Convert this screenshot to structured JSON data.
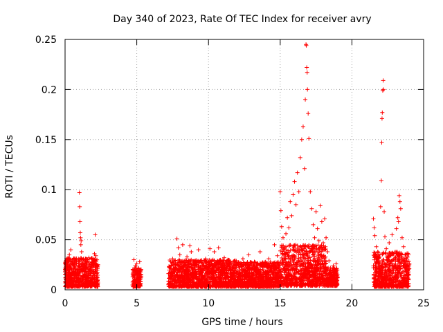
{
  "chart_data": {
    "type": "scatter",
    "title": "Day 340 of 2023, Rate Of TEC Index for receiver avry",
    "xlabel": "GPS time / hours",
    "ylabel": "ROTI / TECUs",
    "xlim": [
      0,
      25
    ],
    "ylim": [
      0,
      0.25
    ],
    "xticks": [
      0,
      5,
      10,
      15,
      20,
      25
    ],
    "xtick_labels": [
      "0",
      "5",
      "10",
      "15",
      "20",
      "25"
    ],
    "yticks": [
      0,
      0.05,
      0.1,
      0.15,
      0.2,
      0.25
    ],
    "ytick_labels": [
      "0",
      "0.05",
      "0.1",
      "0.15",
      "0.2",
      "0.25"
    ],
    "grid": true,
    "marker": "+",
    "marker_color": "#ff0000",
    "points": [
      [
        0.0,
        0.018
      ],
      [
        0.05,
        0.024
      ],
      [
        0.1,
        0.012
      ],
      [
        0.15,
        0.03
      ],
      [
        0.2,
        0.02
      ],
      [
        0.25,
        0.015
      ],
      [
        0.3,
        0.035
      ],
      [
        0.35,
        0.022
      ],
      [
        0.4,
        0.04
      ],
      [
        0.45,
        0.028
      ],
      [
        0.5,
        0.016
      ],
      [
        0.55,
        0.025
      ],
      [
        0.6,
        0.019
      ],
      [
        0.65,
        0.013
      ],
      [
        0.7,
        0.021
      ],
      [
        0.75,
        0.018
      ],
      [
        0.8,
        0.026
      ],
      [
        0.85,
        0.014
      ],
      [
        0.9,
        0.02
      ],
      [
        0.95,
        0.031
      ],
      [
        1.0,
        0.097
      ],
      [
        1.02,
        0.083
      ],
      [
        1.04,
        0.068
      ],
      [
        1.06,
        0.057
      ],
      [
        1.08,
        0.052
      ],
      [
        1.1,
        0.045
      ],
      [
        1.12,
        0.049
      ],
      [
        1.15,
        0.038
      ],
      [
        1.2,
        0.026
      ],
      [
        1.25,
        0.019
      ],
      [
        1.3,
        0.024
      ],
      [
        1.35,
        0.015
      ],
      [
        1.4,
        0.022
      ],
      [
        1.45,
        0.018
      ],
      [
        1.5,
        0.028
      ],
      [
        1.55,
        0.012
      ],
      [
        1.6,
        0.02
      ],
      [
        1.65,
        0.016
      ],
      [
        1.7,
        0.025
      ],
      [
        1.75,
        0.011
      ],
      [
        1.8,
        0.019
      ],
      [
        1.85,
        0.023
      ],
      [
        1.9,
        0.027
      ],
      [
        1.95,
        0.014
      ],
      [
        2.0,
        0.018
      ],
      [
        2.05,
        0.036
      ],
      [
        2.1,
        0.055
      ],
      [
        2.15,
        0.034
      ],
      [
        2.2,
        0.012
      ],
      [
        2.25,
        0.017
      ],
      [
        4.75,
        0.014
      ],
      [
        4.8,
        0.03
      ],
      [
        4.85,
        0.019
      ],
      [
        4.9,
        0.024
      ],
      [
        4.95,
        0.012
      ],
      [
        5.0,
        0.026
      ],
      [
        5.05,
        0.016
      ],
      [
        5.1,
        0.021
      ],
      [
        5.15,
        0.011
      ],
      [
        5.2,
        0.028
      ],
      [
        5.25,
        0.018
      ],
      [
        5.3,
        0.015
      ],
      [
        7.3,
        0.012
      ],
      [
        7.4,
        0.024
      ],
      [
        7.5,
        0.031
      ],
      [
        7.6,
        0.018
      ],
      [
        7.7,
        0.026
      ],
      [
        7.8,
        0.051
      ],
      [
        7.9,
        0.042
      ],
      [
        8.0,
        0.035
      ],
      [
        8.1,
        0.022
      ],
      [
        8.2,
        0.045
      ],
      [
        8.3,
        0.028
      ],
      [
        8.4,
        0.017
      ],
      [
        8.5,
        0.033
      ],
      [
        8.6,
        0.02
      ],
      [
        8.7,
        0.044
      ],
      [
        8.8,
        0.038
      ],
      [
        8.9,
        0.021
      ],
      [
        9.0,
        0.029
      ],
      [
        9.1,
        0.015
      ],
      [
        9.2,
        0.025
      ],
      [
        9.3,
        0.04
      ],
      [
        9.4,
        0.019
      ],
      [
        9.5,
        0.027
      ],
      [
        9.6,
        0.013
      ],
      [
        9.7,
        0.023
      ],
      [
        9.8,
        0.031
      ],
      [
        9.9,
        0.018
      ],
      [
        10.0,
        0.026
      ],
      [
        10.1,
        0.041
      ],
      [
        10.2,
        0.019
      ],
      [
        10.3,
        0.014
      ],
      [
        10.4,
        0.038
      ],
      [
        10.5,
        0.024
      ],
      [
        10.6,
        0.017
      ],
      [
        10.7,
        0.042
      ],
      [
        10.8,
        0.029
      ],
      [
        10.9,
        0.016
      ],
      [
        11.0,
        0.021
      ],
      [
        11.1,
        0.032
      ],
      [
        11.2,
        0.012
      ],
      [
        11.3,
        0.026
      ],
      [
        11.4,
        0.019
      ],
      [
        11.5,
        0.028
      ],
      [
        11.6,
        0.015
      ],
      [
        11.7,
        0.022
      ],
      [
        11.8,
        0.018
      ],
      [
        11.9,
        0.025
      ],
      [
        12.0,
        0.012
      ],
      [
        12.2,
        0.024
      ],
      [
        12.4,
        0.031
      ],
      [
        12.6,
        0.017
      ],
      [
        12.8,
        0.035
      ],
      [
        13.0,
        0.022
      ],
      [
        13.2,
        0.028
      ],
      [
        13.4,
        0.019
      ],
      [
        13.6,
        0.038
      ],
      [
        13.8,
        0.025
      ],
      [
        14.0,
        0.017
      ],
      [
        14.2,
        0.031
      ],
      [
        14.4,
        0.022
      ],
      [
        14.6,
        0.045
      ],
      [
        14.8,
        0.034
      ],
      [
        15.0,
        0.098
      ],
      [
        15.05,
        0.079
      ],
      [
        15.1,
        0.063
      ],
      [
        15.2,
        0.052
      ],
      [
        15.3,
        0.041
      ],
      [
        15.4,
        0.056
      ],
      [
        15.5,
        0.072
      ],
      [
        15.6,
        0.062
      ],
      [
        15.7,
        0.088
      ],
      [
        15.8,
        0.074
      ],
      [
        15.9,
        0.095
      ],
      [
        16.0,
        0.108
      ],
      [
        16.1,
        0.085
      ],
      [
        16.2,
        0.117
      ],
      [
        16.3,
        0.098
      ],
      [
        16.4,
        0.132
      ],
      [
        16.5,
        0.15
      ],
      [
        16.6,
        0.163
      ],
      [
        16.7,
        0.121
      ],
      [
        16.75,
        0.19
      ],
      [
        16.8,
        0.245
      ],
      [
        16.82,
        0.244
      ],
      [
        16.85,
        0.222
      ],
      [
        16.88,
        0.217
      ],
      [
        16.9,
        0.2
      ],
      [
        16.95,
        0.176
      ],
      [
        17.0,
        0.151
      ],
      [
        17.1,
        0.098
      ],
      [
        17.2,
        0.081
      ],
      [
        17.3,
        0.065
      ],
      [
        17.4,
        0.052
      ],
      [
        17.5,
        0.078
      ],
      [
        17.6,
        0.061
      ],
      [
        17.7,
        0.049
      ],
      [
        17.8,
        0.084
      ],
      [
        17.9,
        0.068
      ],
      [
        18.0,
        0.047
      ],
      [
        18.1,
        0.071
      ],
      [
        18.2,
        0.052
      ],
      [
        18.3,
        0.038
      ],
      [
        18.4,
        0.029
      ],
      [
        18.5,
        0.022
      ],
      [
        18.6,
        0.015
      ],
      [
        18.7,
        0.024
      ],
      [
        18.8,
        0.018
      ],
      [
        18.9,
        0.026
      ],
      [
        19.0,
        0.012
      ],
      [
        21.5,
        0.071
      ],
      [
        21.55,
        0.062
      ],
      [
        21.6,
        0.054
      ],
      [
        21.7,
        0.043
      ],
      [
        21.8,
        0.038
      ],
      [
        21.9,
        0.029
      ],
      [
        22.0,
        0.083
      ],
      [
        22.05,
        0.109
      ],
      [
        22.08,
        0.147
      ],
      [
        22.1,
        0.171
      ],
      [
        22.12,
        0.177
      ],
      [
        22.15,
        0.199
      ],
      [
        22.18,
        0.209
      ],
      [
        22.2,
        0.2
      ],
      [
        22.25,
        0.078
      ],
      [
        22.3,
        0.053
      ],
      [
        22.4,
        0.041
      ],
      [
        22.5,
        0.032
      ],
      [
        22.6,
        0.047
      ],
      [
        22.7,
        0.028
      ],
      [
        22.8,
        0.055
      ],
      [
        22.9,
        0.036
      ],
      [
        23.0,
        0.024
      ],
      [
        23.1,
        0.061
      ],
      [
        23.2,
        0.072
      ],
      [
        23.25,
        0.068
      ],
      [
        23.3,
        0.094
      ],
      [
        23.35,
        0.088
      ],
      [
        23.4,
        0.081
      ],
      [
        23.5,
        0.052
      ],
      [
        23.6,
        0.043
      ],
      [
        23.7,
        0.035
      ],
      [
        23.8,
        0.028
      ],
      [
        23.9,
        0.019
      ],
      [
        24.0,
        0.026
      ]
    ],
    "clusters": [
      {
        "x": [
          0.0,
          2.3
        ],
        "y": [
          0.003,
          0.032
        ]
      },
      {
        "x": [
          4.7,
          5.3
        ],
        "y": [
          0.003,
          0.022
        ]
      },
      {
        "x": [
          7.2,
          12.0
        ],
        "y": [
          0.003,
          0.03
        ]
      },
      {
        "x": [
          12.0,
          15.0
        ],
        "y": [
          0.003,
          0.028
        ]
      },
      {
        "x": [
          15.0,
          18.2
        ],
        "y": [
          0.004,
          0.045
        ]
      },
      {
        "x": [
          18.2,
          19.0
        ],
        "y": [
          0.004,
          0.022
        ]
      },
      {
        "x": [
          21.5,
          24.0
        ],
        "y": [
          0.003,
          0.038
        ]
      }
    ]
  }
}
